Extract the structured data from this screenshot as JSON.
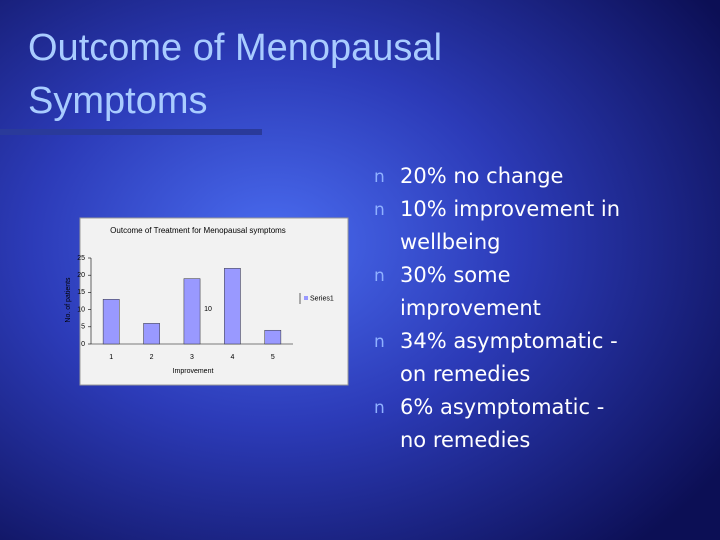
{
  "slide": {
    "title_lines": [
      "Outcome of Menopausal",
      "Symptoms"
    ],
    "bullet_marker": "n",
    "bullets": [
      [
        "20% no change"
      ],
      [
        "10% improvement in",
        "wellbeing"
      ],
      [
        "30% some",
        "improvement"
      ],
      [
        "34% asymptomatic -",
        "on remedies"
      ],
      [
        "6% asymptomatic -",
        "no remedies"
      ]
    ]
  },
  "chart_data": {
    "type": "bar",
    "title": "Outcome of Treatment for Menopausal symptoms",
    "x_label": "Improvement",
    "y_label": "No. of patients",
    "categories": [
      "1",
      "2",
      "3",
      "4",
      "5"
    ],
    "series": [
      {
        "name": "Series1",
        "color": "#9999ff",
        "values": [
          13,
          6,
          19,
          22,
          4
        ]
      }
    ],
    "ylim": [
      0,
      25
    ],
    "yticks": [
      0,
      5,
      10,
      15,
      20,
      25
    ],
    "annotations": [
      "10"
    ]
  }
}
